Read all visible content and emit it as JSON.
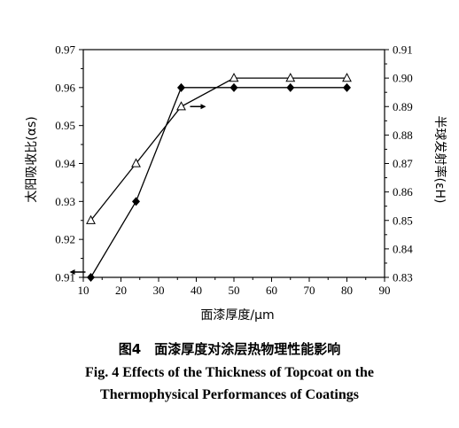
{
  "chart_data": {
    "type": "line",
    "xlabel": "面漆厚度/μm",
    "ylabel_left": "太阳吸收比(αs)",
    "ylabel_right": "半球发射率(εH)",
    "xlim": [
      10,
      90
    ],
    "xticks": [
      10,
      20,
      30,
      40,
      50,
      60,
      70,
      80,
      90
    ],
    "y_left_lim": [
      0.91,
      0.97
    ],
    "y_left_ticks": [
      "0.91",
      "0.92",
      "0.93",
      "0.94",
      "0.95",
      "0.96",
      "0.97"
    ],
    "y_right_lim": [
      0.83,
      0.91
    ],
    "y_right_ticks": [
      "0.83",
      "0.84",
      "0.85",
      "0.86",
      "0.87",
      "0.88",
      "0.89",
      "0.90",
      "0.91"
    ],
    "series": [
      {
        "marker": "filled-diamond",
        "axis": "left",
        "x": [
          12,
          24,
          36,
          50,
          65,
          80
        ],
        "y": [
          0.91,
          0.93,
          0.96,
          0.96,
          0.96,
          0.96
        ]
      },
      {
        "marker": "open-triangle",
        "axis": "right",
        "x": [
          12,
          24,
          36,
          50,
          65,
          80
        ],
        "y": [
          0.85,
          0.87,
          0.89,
          0.9,
          0.9,
          0.9
        ]
      }
    ],
    "annotations": [
      {
        "type": "arrow-left",
        "near_series": 0
      },
      {
        "type": "arrow-right",
        "near_series": 1
      }
    ]
  },
  "caption": {
    "cn": "图4　面漆厚度对涂层热物理性能影响",
    "en_line1": "Fig. 4   Effects of the Thickness of Topcoat on the",
    "en_line2": "Thermophysical Performances of Coatings"
  }
}
